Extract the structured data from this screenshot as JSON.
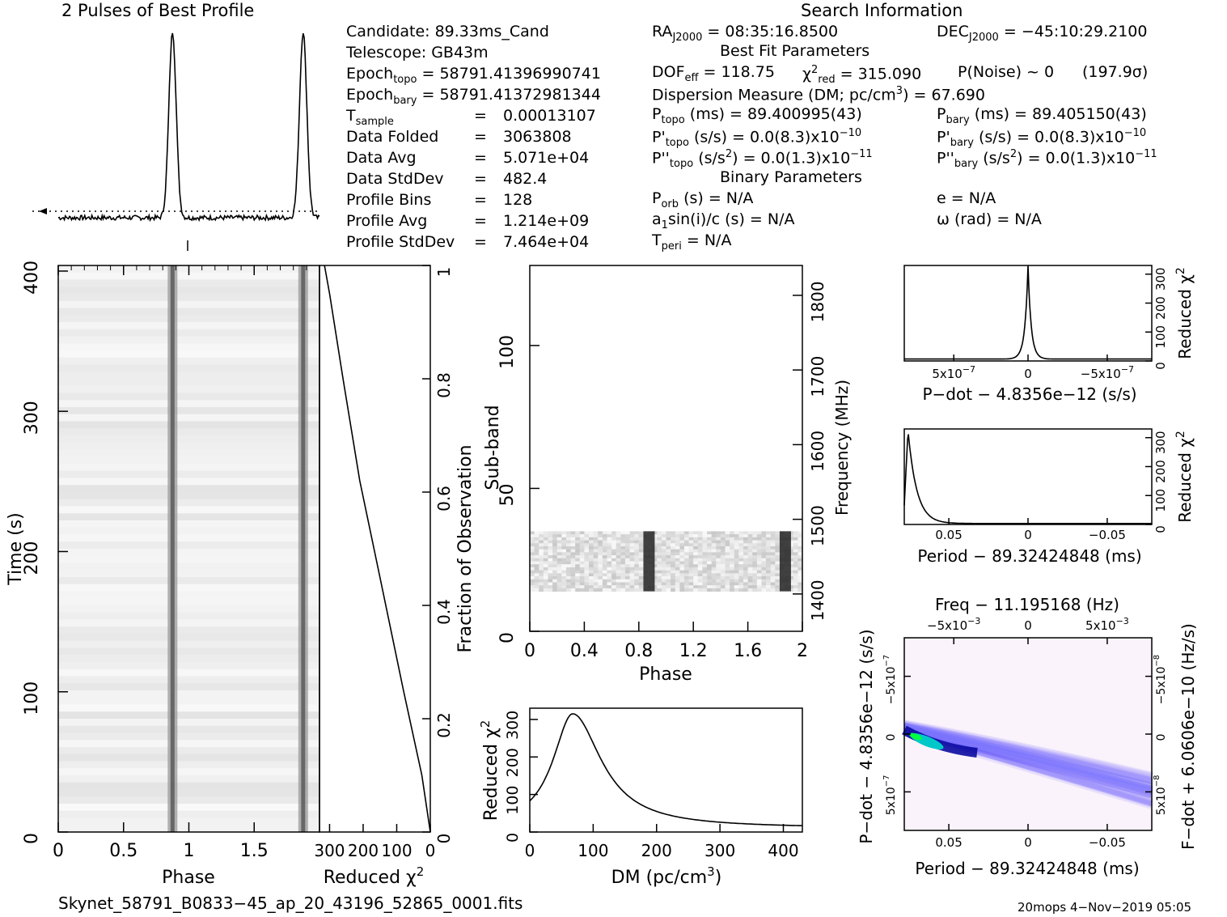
{
  "profile_title": "2 Pulses of Best Profile",
  "search_title": "Search Information",
  "candidate_info": [
    {
      "label": "Candidate:",
      "value": "89.33ms_Cand"
    },
    {
      "label": "Telescope:",
      "value": "GB43m"
    },
    {
      "label": "Epoch",
      "sub": "topo",
      "eq": "=",
      "value": "58791.4139699074​1"
    },
    {
      "label": "Epoch",
      "sub": "bary",
      "eq": "=",
      "value": "58791.41372981344"
    },
    {
      "label": "T",
      "sub": "sample",
      "eq": "=",
      "value": "0.00013107"
    },
    {
      "label": "Data Folded",
      "eq": "=",
      "value": "3063808"
    },
    {
      "label": "Data Avg",
      "eq": "=",
      "value": "5.071e+04"
    },
    {
      "label": "Data StdDev",
      "eq": "=",
      "value": "482.4"
    },
    {
      "label": "Profile Bins",
      "eq": "=",
      "value": "128"
    },
    {
      "label": "Profile Avg",
      "eq": "=",
      "value": "1.214e+09"
    },
    {
      "label": "Profile StdDev",
      "eq": "=",
      "value": "7.464e+04"
    }
  ],
  "search": {
    "ra_label": "RA",
    "ra_sub": "J2000",
    "ra_value": "= 08:35:16.8500",
    "dec_label": "DEC",
    "dec_sub": "J2000",
    "dec_value": "= −45:10:29.2100",
    "best_fit_title": "Best Fit Parameters",
    "dof_label": "DOF",
    "dof_sub": "eff",
    "dof_value": "= 118.75",
    "chi_label": "χ",
    "chi_sup": "2",
    "chi_sub": "red",
    "chi_value": "= 315.090",
    "pnoise": "P(Noise) ~ 0",
    "sigma": "(197.9σ)",
    "dm_line_a": "Dispersion Measure (DM; pc/cm",
    "dm_line_sup": "3",
    "dm_line_b": ") = 67.690",
    "ptopo_label": "P",
    "ptopo_sub": "topo",
    "ptopo_value": "(ms) =  89.400995(43)",
    "pbary_label": "P",
    "pbary_sub": "bary",
    "pbary_value": "(ms) =  89.405150(43)",
    "pdtopo_label": "P'",
    "pdtopo_sub": "topo",
    "pdtopo_value": "(s/s) = 0.0(8.3)x10",
    "pdtopo_exp": "−10",
    "pdbary_label": "P'",
    "pdbary_sub": "bary",
    "pdbary_value": "(s/s) = 0.0(8.3)x10",
    "pdbary_exp": "−10",
    "pddtopo_label": "P''",
    "pddtopo_sub": "topo",
    "pddtopo_value_a": "(s/s",
    "pddtopo_value_sup": "2",
    "pddtopo_value_b": ") = 0.0(1.3)x10",
    "pddtopo_exp": "−11",
    "pddbary_label": "P''",
    "pddbary_sub": "bary",
    "pddbary_value_a": "(s/s",
    "pddbary_value_sup": "2",
    "pddbary_value_b": ") = 0.0(1.3)x10",
    "pddbary_exp": "−11",
    "binary_title": "Binary Parameters",
    "porb_label": "P",
    "porb_sub": "orb",
    "porb_value": "(s) = N/A",
    "a1_label": "a",
    "a1_sub": "1",
    "a1_value": "sin(i)/c (s) = N/A",
    "tperi_label": "T",
    "tperi_sub": "peri",
    "tperi_value": "= N/A",
    "e_value": "e = N/A",
    "omega_value": "ω (rad) = N/A"
  },
  "footer": {
    "filename": "Skynet_58791_B0833−45_ap_20_43196_52865_0001.fits",
    "stamp": "20mops  4−Nov−2019 05:05"
  },
  "colors": {
    "ink": "#000000",
    "heat_low": "#ffffff",
    "heat_mid": "#7a7aff",
    "heat_high": "#00c8c8",
    "heat_peak": "#00ff00"
  },
  "chart_data": [
    {
      "type": "line",
      "name": "profile",
      "title": "2 Pulses of Best Profile",
      "x": "phase 0-2",
      "peaks_phase": [
        0.875,
        1.875
      ],
      "baseline_dotted": true
    },
    {
      "type": "heatmap",
      "name": "time-phase",
      "xlabel": "Phase",
      "ylabel": "Time (s)",
      "xticks": [
        "0",
        "0.5",
        "1",
        "1.5"
      ],
      "yticks": [
        "0",
        "100",
        "200",
        "300",
        "400"
      ],
      "xlim": [
        0,
        2
      ],
      "ylim": [
        0,
        400
      ],
      "pulse_phase": [
        0.875,
        1.875
      ]
    },
    {
      "type": "line",
      "name": "chi-vs-time",
      "xlabel": "Reduced χ",
      "xlabel_sup": "2",
      "xticks": [
        "300",
        "200",
        "100",
        "0"
      ],
      "y2label": "Fraction of Observation",
      "y2ticks": [
        "0",
        "0.2",
        "0.4",
        "0.6",
        "0.8",
        "1"
      ],
      "points": [
        [
          0,
          0.0
        ],
        [
          25,
          0.1
        ],
        [
          80,
          0.25
        ],
        [
          150,
          0.45
        ],
        [
          210,
          0.62
        ],
        [
          260,
          0.8
        ],
        [
          300,
          0.95
        ],
        [
          315,
          1.0
        ]
      ]
    },
    {
      "type": "heatmap",
      "name": "subband-phase",
      "xlabel": "Phase",
      "ylabel": "Sub-band",
      "y2label": "Frequency (MHz)",
      "xticks": [
        "0",
        "0.4",
        "0.8",
        "1.2",
        "1.6",
        "2"
      ],
      "yticks": [
        "0",
        "50",
        "100"
      ],
      "y2ticks": [
        "1400",
        "1500",
        "1600",
        "1700",
        "1800"
      ],
      "active_subbands": [
        14,
        35
      ],
      "pulse_phase": [
        0.875,
        1.875
      ]
    },
    {
      "type": "line",
      "name": "chi-vs-dm",
      "xlabel": "DM (pc/cm",
      "xlabel_sup": "3",
      "xlabel_end": ")",
      "ylabel": "Reduced χ",
      "ylabel_sup": "2",
      "xticks": [
        "0",
        "100",
        "200",
        "300",
        "400"
      ],
      "yticks": [
        "0",
        "100",
        "200",
        "300"
      ],
      "xlim": [
        0,
        430
      ],
      "ylim": [
        0,
        330
      ],
      "peak": [
        67.69,
        315
      ]
    },
    {
      "type": "line",
      "name": "chi-vs-pdot",
      "xlabel": "P−dot − 4.8356e−12 (s/s)",
      "ylabel": "Reduced χ",
      "ylabel_sup": "2",
      "xticks": [
        "5x10",
        "0",
        "−5x10"
      ],
      "xtick_exps": [
        "−7",
        "",
        "−7"
      ],
      "yticks": [
        "0",
        "100",
        "200",
        "300"
      ],
      "peak_x": 0
    },
    {
      "type": "line",
      "name": "chi-vs-period",
      "xlabel": "Period − 89.32424848 (ms)",
      "ylabel": "Reduced χ",
      "ylabel_sup": "2",
      "xticks": [
        "0.05",
        "0",
        "−0.05"
      ],
      "yticks": [
        "0",
        "100",
        "200",
        "300"
      ]
    },
    {
      "type": "heatmap",
      "name": "period-pdot",
      "title": "Freq − 11.195168 (Hz)",
      "xlabel": "Period − 89.32424848 (ms)",
      "ylabel": "P−dot − 4.8356e−12 (s/s)",
      "y2label": "F−dot + 6.0606e−10 (Hz/s)",
      "xticks": [
        "0.05",
        "0",
        "−0.05"
      ],
      "x2ticks": [
        "−5x10",
        "0",
        "5x10"
      ],
      "x2tick_exps": [
        "−3",
        "",
        "−3"
      ],
      "yticks": [
        "5x10",
        "0",
        "−5x10"
      ],
      "ytick_exps": [
        "−7",
        "",
        "−7"
      ],
      "y2ticks": [
        "−5x10",
        "0",
        "5x10"
      ],
      "y2tick_exps": [
        "−8",
        "",
        "−8"
      ]
    }
  ]
}
